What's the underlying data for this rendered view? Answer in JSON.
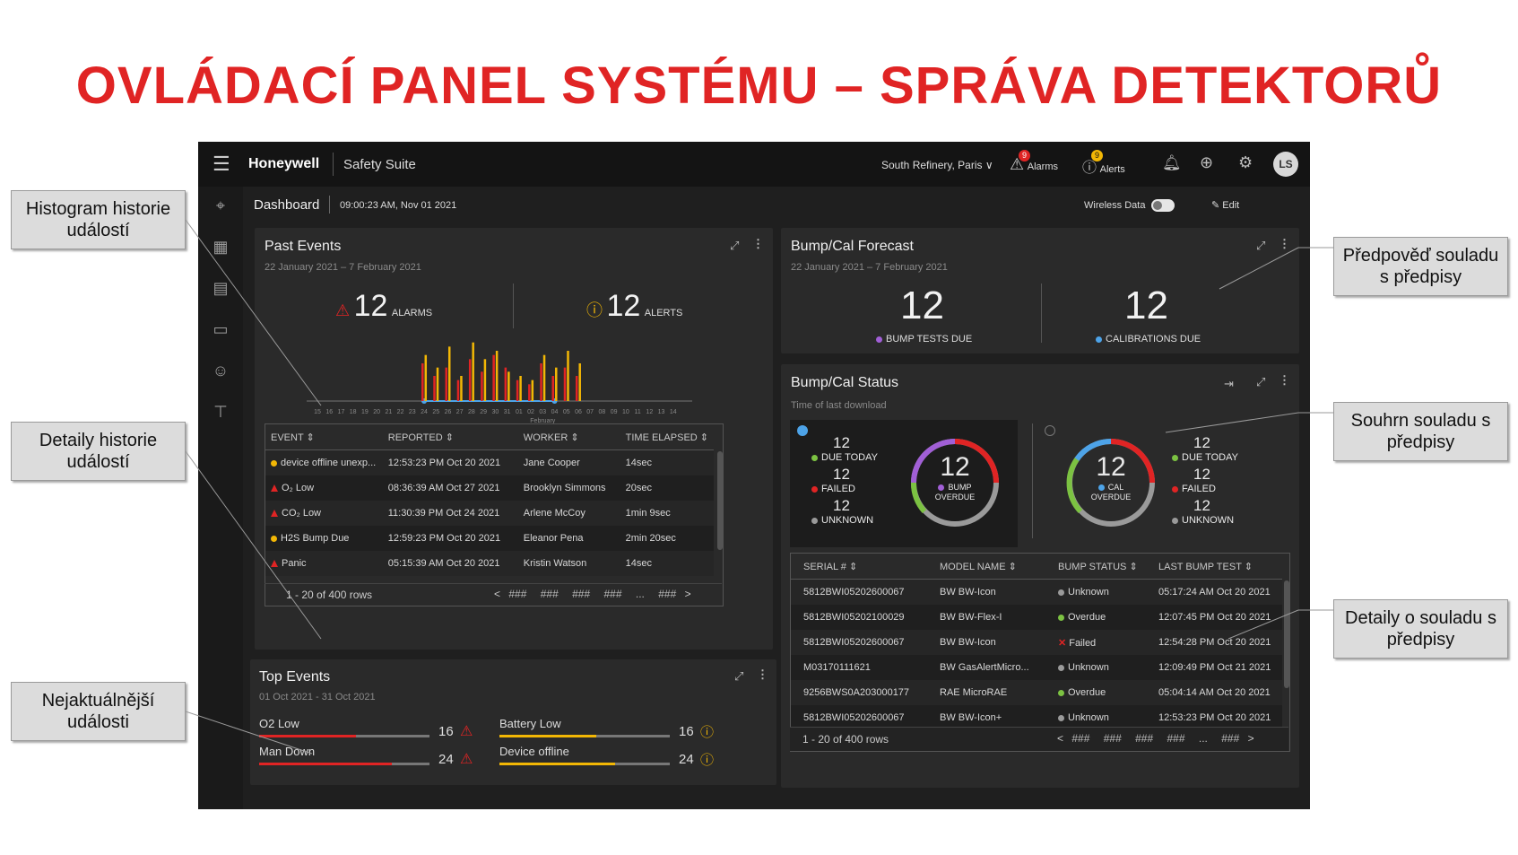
{
  "slide_title": "OVLÁDACÍ PANEL SYSTÉMU – SPRÁVA DETEKTORŮ",
  "callouts": {
    "histogram": "Histogram historie událostí",
    "event_details": "Detaily historie událostí",
    "recent_events": "Nejaktuálnější události",
    "forecast": "Předpověď souladu s předpisy",
    "summary": "Souhrn souladu s předpisy",
    "details": "Detaily o souladu s předpisy"
  },
  "topbar": {
    "brand": "Honeywell",
    "product": "Safety Suite",
    "site": "South Refinery, Paris",
    "alarms_label": "Alarms",
    "alarms_badge": "9",
    "alerts_label": "Alerts",
    "alerts_badge": "9",
    "avatar": "LS"
  },
  "subbar": {
    "title": "Dashboard",
    "timestamp": "09:00:23 AM, Nov 01 2021",
    "wireless": "Wireless Data",
    "edit": "Edit"
  },
  "past_events": {
    "title": "Past Events",
    "range": "22 January 2021 – 7 February 2021",
    "alarms_count": "12",
    "alarms_label": "ALARMS",
    "alerts_count": "12",
    "alerts_label": "ALERTS",
    "month_label": "February",
    "columns": [
      "EVENT",
      "REPORTED",
      "WORKER",
      "TIME ELAPSED"
    ],
    "rows": [
      {
        "event": "device offline unexp...",
        "type": "alert",
        "reported": "12:53:23 PM Oct 20 2021",
        "worker": "Jane Cooper",
        "elapsed": "14sec"
      },
      {
        "event": "O₂ Low",
        "type": "alarm",
        "reported": "08:36:39 AM Oct 27 2021",
        "worker": "Brooklyn Simmons",
        "elapsed": "20sec"
      },
      {
        "event": "CO₂ Low",
        "type": "alarm",
        "reported": "11:30:39 PM Oct 24 2021",
        "worker": "Arlene McCoy",
        "elapsed": "1min 9sec"
      },
      {
        "event": "H2S Bump Due",
        "type": "alert",
        "reported": "12:59:23 PM Oct 20 2021",
        "worker": "Eleanor Pena",
        "elapsed": "2min 20sec"
      },
      {
        "event": "Panic",
        "type": "alarm",
        "reported": "05:15:39 AM Oct 20 2021",
        "worker": "Kristin Watson",
        "elapsed": "14sec"
      }
    ],
    "pager": {
      "rows": "1 - 20 of 400 rows",
      "pages": [
        "###",
        "###",
        "###",
        "###",
        "...",
        "###"
      ]
    }
  },
  "chart_data": {
    "type": "bar",
    "title": "",
    "categories": [
      "15",
      "16",
      "17",
      "18",
      "19",
      "20",
      "21",
      "22",
      "23",
      "24",
      "25",
      "26",
      "27",
      "28",
      "29",
      "30",
      "31",
      "01",
      "02",
      "03",
      "04",
      "05",
      "06",
      "07",
      "08",
      "09",
      "10",
      "11",
      "12",
      "13",
      "14"
    ],
    "highlight_range": [
      "24",
      "04"
    ],
    "series": [
      {
        "name": "",
        "color": "#e02424",
        "values": [
          0,
          0,
          0,
          0,
          0,
          0,
          0,
          0,
          0,
          9,
          6,
          8,
          5,
          10,
          7,
          11,
          8,
          5,
          4,
          9,
          6,
          8,
          6,
          0,
          0,
          0,
          0,
          0,
          0,
          0,
          0
        ]
      },
      {
        "name": "",
        "color": "#f2b705",
        "values": [
          0,
          0,
          0,
          0,
          0,
          0,
          0,
          0,
          0,
          11,
          8,
          13,
          6,
          14,
          10,
          12,
          7,
          6,
          5,
          11,
          8,
          12,
          9,
          0,
          0,
          0,
          0,
          0,
          0,
          0,
          0
        ]
      }
    ],
    "ylim": [
      0,
      15
    ]
  },
  "top_events": {
    "title": "Top Events",
    "range": "01 Oct 2021 - 31 Oct 2021",
    "items": [
      {
        "label": "O2 Low",
        "count": "16",
        "type": "alarm",
        "fraction": 0.57
      },
      {
        "label": "Battery Low",
        "count": "16",
        "type": "alert",
        "fraction": 0.57
      },
      {
        "label": "Man Down",
        "count": "24",
        "type": "alarm",
        "fraction": 0.78
      },
      {
        "label": "Device offline",
        "count": "24",
        "type": "alert",
        "fraction": 0.68
      }
    ]
  },
  "forecast": {
    "title": "Bump/Cal Forecast",
    "range": "22 January 2021 – 7 February 2021",
    "bump_count": "12",
    "bump_label": "BUMP TESTS DUE",
    "cal_count": "12",
    "cal_label": "CALIBRATIONS DUE"
  },
  "status": {
    "title": "Bump/Cal Status",
    "sub": "Time of last download",
    "bump": {
      "due_count": "12",
      "due_label": "DUE TODAY",
      "failed_count": "12",
      "failed_label": "FAILED",
      "unknown_count": "12",
      "unknown_label": "UNKNOWN",
      "center_count": "12",
      "center_label1": "BUMP",
      "center_label2": "OVERDUE"
    },
    "cal": {
      "due_count": "12",
      "due_label": "DUE TODAY",
      "failed_count": "12",
      "failed_label": "FAILED",
      "unknown_count": "12",
      "unknown_label": "UNKNOWN",
      "center_count": "12",
      "center_label1": "CAL",
      "center_label2": "OVERDUE"
    },
    "columns": [
      "SERIAL #",
      "MODEL NAME",
      "BUMP STATUS",
      "LAST BUMP TEST"
    ],
    "rows": [
      {
        "serial": "5812BWI05202600067",
        "model": "BW BW-Icon",
        "status": "Unknown",
        "kind": "unknown",
        "last": "05:17:24 AM Oct 20 2021"
      },
      {
        "serial": "5812BWI05202100029",
        "model": "BW BW-Flex-I",
        "status": "Overdue",
        "kind": "overdue",
        "last": "12:07:45 PM Oct 20 2021"
      },
      {
        "serial": "5812BWI05202600067",
        "model": "BW BW-Icon",
        "status": "Failed",
        "kind": "failed",
        "last": "12:54:28 PM Oct 20 2021"
      },
      {
        "serial": "M03170111621",
        "model": "BW GasAlertMicro...",
        "status": "Unknown",
        "kind": "unknown",
        "last": "12:09:49 PM Oct 21 2021"
      },
      {
        "serial": "9256BWS0A203000177",
        "model": "RAE MicroRAE",
        "status": "Overdue",
        "kind": "overdue",
        "last": "05:04:14 AM Oct 20 2021"
      },
      {
        "serial": "5812BWI05202600067",
        "model": "BW BW-Icon+",
        "status": "Unknown",
        "kind": "unknown",
        "last": "12:53:23 PM Oct 20 2021"
      }
    ],
    "pager": {
      "rows": "1 - 20 of 400 rows",
      "pages": [
        "###",
        "###",
        "###",
        "###",
        "...",
        "###"
      ]
    }
  },
  "colors": {
    "alarm": "#e02424",
    "alert": "#f2b705",
    "purple": "#a15fd6",
    "blue": "#4da3e8",
    "green": "#7cc242",
    "grey": "#9a9a9a",
    "title_red": "#e02424"
  }
}
